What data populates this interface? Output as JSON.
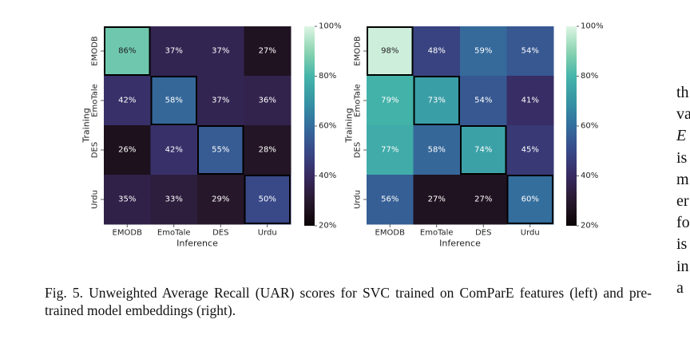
{
  "chart_data": [
    {
      "type": "heatmap",
      "title": "",
      "xlabel": "Inference",
      "ylabel": "Training",
      "x_categories": [
        "EMODB",
        "EmoTale",
        "DES",
        "Urdu"
      ],
      "y_categories": [
        "EMODB",
        "EmoTale",
        "DES",
        "Urdu"
      ],
      "values": [
        [
          86,
          37,
          37,
          27
        ],
        [
          42,
          58,
          37,
          36
        ],
        [
          26,
          42,
          55,
          28
        ],
        [
          35,
          33,
          29,
          50
        ]
      ],
      "value_suffix": "%",
      "highlighted_cells": "diagonal",
      "colorbar": {
        "range": [
          20,
          100
        ],
        "ticks": [
          "20%",
          "40%",
          "60%",
          "80%",
          "100%"
        ],
        "colormap": "mako"
      }
    },
    {
      "type": "heatmap",
      "title": "",
      "xlabel": "Inference",
      "ylabel": "Training",
      "x_categories": [
        "EMODB",
        "EmoTale",
        "DES",
        "Urdu"
      ],
      "y_categories": [
        "EMODB",
        "EmoTale",
        "DES",
        "Urdu"
      ],
      "values": [
        [
          98,
          48,
          59,
          54
        ],
        [
          79,
          73,
          54,
          41
        ],
        [
          77,
          58,
          74,
          45
        ],
        [
          56,
          27,
          27,
          60
        ]
      ],
      "value_suffix": "%",
      "highlighted_cells": "diagonal",
      "colorbar": {
        "range": [
          20,
          100
        ],
        "ticks": [
          "20%",
          "40%",
          "60%",
          "80%",
          "100%"
        ],
        "colormap": "mako"
      }
    }
  ],
  "caption": "Fig. 5.  Unweighted Average Recall (UAR) scores for SVC trained on ComParE features (left) and pre-trained model embeddings (right).",
  "side_text": [
    "th",
    "va",
    "E",
    "is",
    "m",
    "er",
    "fo",
    "is",
    "in",
    "a"
  ]
}
